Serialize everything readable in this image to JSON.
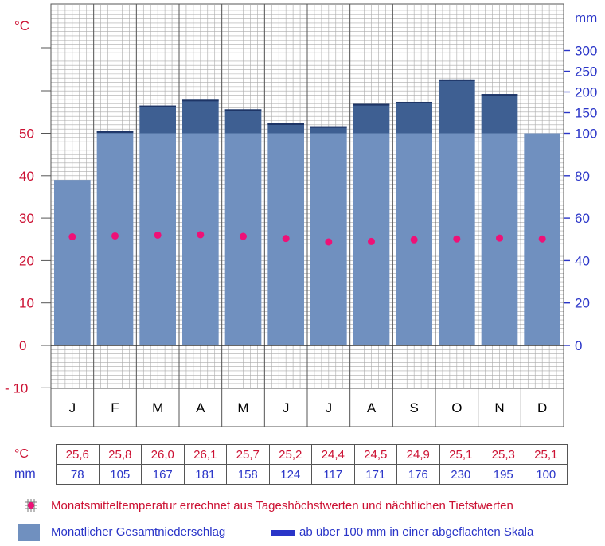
{
  "chart_data": {
    "type": "bar",
    "categories": [
      "J",
      "F",
      "M",
      "A",
      "M",
      "J",
      "J",
      "A",
      "S",
      "O",
      "N",
      "D"
    ],
    "series": [
      {
        "name": "Monatlicher Gesamtniederschlag",
        "unit": "mm",
        "values": [
          78,
          105,
          167,
          181,
          158,
          124,
          117,
          171,
          176,
          230,
          195,
          100
        ],
        "color": "#7090bf",
        "overflow_color": "#3e5f92"
      },
      {
        "name": "Monatsmitteltemperatur errechnet aus Tageshöchstwerten und nächtlichen Tiefstwerten",
        "unit": "°C",
        "values": [
          25.6,
          25.8,
          26.0,
          26.1,
          25.7,
          25.2,
          24.4,
          24.5,
          24.9,
          25.1,
          25.3,
          25.1
        ],
        "color": "#ee1177"
      }
    ],
    "left_axis": {
      "unit_label": "°C",
      "ticks": [
        "50",
        "40",
        "30",
        "20",
        "10",
        "0",
        "- 10"
      ],
      "tick_values": [
        50,
        40,
        30,
        20,
        10,
        0,
        -10
      ],
      "range": [
        -10,
        80
      ]
    },
    "right_axis": {
      "unit_label": "mm",
      "ticks": [
        "300",
        "250",
        "200",
        "150",
        "100",
        "80",
        "60",
        "40",
        "20",
        "0"
      ],
      "tick_values": [
        300,
        250,
        200,
        150,
        100,
        80,
        60,
        40,
        20,
        0
      ],
      "linear_up_to": 100,
      "compressed_above": 100
    },
    "grid": true
  },
  "table": {
    "temp_label": "°C",
    "prec_label": "mm",
    "temp_values": [
      "25,6",
      "25,8",
      "26,0",
      "26,1",
      "25,7",
      "25,2",
      "24,4",
      "24,5",
      "24,9",
      "25,1",
      "25,3",
      "25,1"
    ],
    "prec_values": [
      "78",
      "105",
      "167",
      "181",
      "158",
      "124",
      "117",
      "171",
      "176",
      "230",
      "195",
      "100"
    ]
  },
  "legend": {
    "temperature": "Monatsmitteltemperatur errechnet aus Tageshöchstwerten und nächtlichen Tiefstwerten",
    "precipitation": "Monatlicher Gesamtniederschlag",
    "compressed": "ab über 100 mm  in einer abgeflachten Skala"
  },
  "colors": {
    "temp": "#cc1133",
    "prec": "#2a35c8",
    "bar": "#7090bf",
    "bar_top": "#3e5f92",
    "dot": "#ee1177"
  }
}
